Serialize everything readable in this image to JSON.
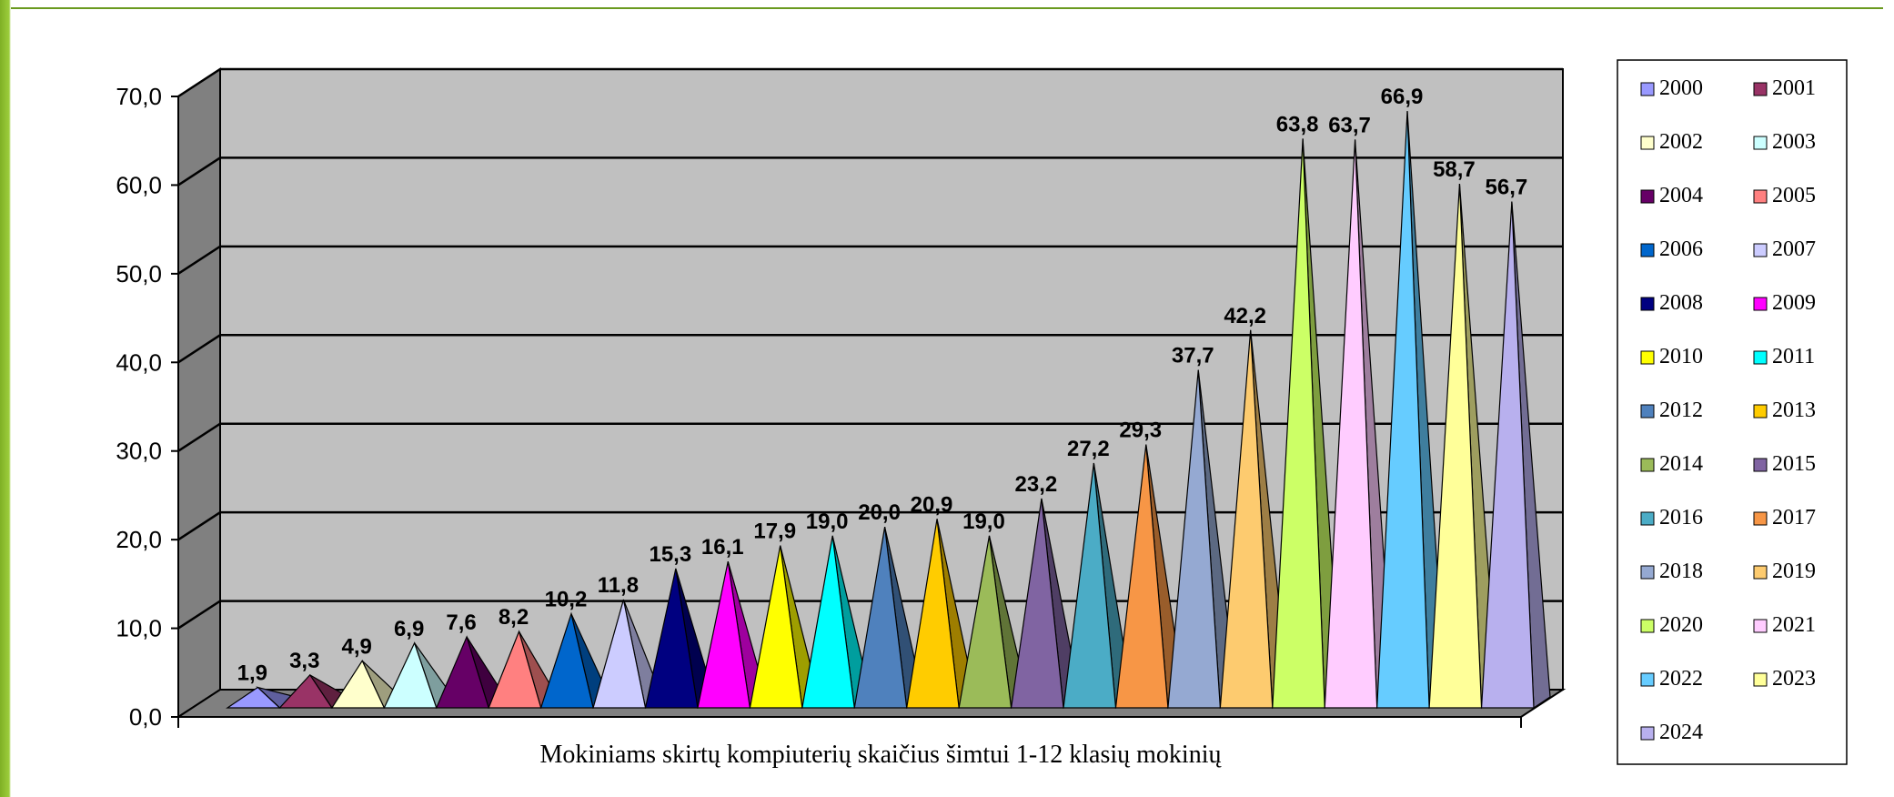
{
  "chart_data": {
    "type": "bar",
    "style": "3d-pyramid",
    "xlabel": "Mokiniams skirtų kompiuterių skaičius šimtui 1-12 klasių mokinių",
    "ylim": [
      0,
      70
    ],
    "y_ticks": [
      "0,0",
      "10,0",
      "20,0",
      "30,0",
      "40,0",
      "50,0",
      "60,0",
      "70,0"
    ],
    "grid": true,
    "legend_position": "right",
    "series": [
      {
        "name": "2000",
        "value": 1.9,
        "label": "1,9",
        "color": "#9999ff"
      },
      {
        "name": "2001",
        "value": 3.3,
        "label": "3,3",
        "color": "#993366"
      },
      {
        "name": "2002",
        "value": 4.9,
        "label": "4,9",
        "color": "#ffffcc"
      },
      {
        "name": "2003",
        "value": 6.9,
        "label": "6,9",
        "color": "#ccffff"
      },
      {
        "name": "2004",
        "value": 7.6,
        "label": "7,6",
        "color": "#660066"
      },
      {
        "name": "2005",
        "value": 8.2,
        "label": "8,2",
        "color": "#ff8080"
      },
      {
        "name": "2006",
        "value": 10.2,
        "label": "10,2",
        "color": "#0066cc"
      },
      {
        "name": "2007",
        "value": 11.8,
        "label": "11,8",
        "color": "#ccccff"
      },
      {
        "name": "2008",
        "value": 15.3,
        "label": "15,3",
        "color": "#000080"
      },
      {
        "name": "2009",
        "value": 16.1,
        "label": "16,1",
        "color": "#ff00ff"
      },
      {
        "name": "2010",
        "value": 17.9,
        "label": "17,9",
        "color": "#ffff00"
      },
      {
        "name": "2011",
        "value": 19.0,
        "label": "19,0",
        "color": "#00ffff"
      },
      {
        "name": "2012",
        "value": 20.0,
        "label": "20,0",
        "color": "#4f81bd"
      },
      {
        "name": "2013",
        "value": 20.9,
        "label": "20,9",
        "color": "#ffcc00"
      },
      {
        "name": "2014",
        "value": 19.0,
        "label": "19,0",
        "color": "#9bbb59"
      },
      {
        "name": "2015",
        "value": 23.2,
        "label": "23,2",
        "color": "#8064a2"
      },
      {
        "name": "2016",
        "value": 27.2,
        "label": "27,2",
        "color": "#4bacc6"
      },
      {
        "name": "2017",
        "value": 29.3,
        "label": "29,3",
        "color": "#f79646"
      },
      {
        "name": "2018",
        "value": 37.7,
        "label": "37,7",
        "color": "#95a9d2"
      },
      {
        "name": "2019",
        "value": 42.2,
        "label": "42,2",
        "color": "#fdcb6f"
      },
      {
        "name": "2020",
        "value": 63.8,
        "label": "63,8",
        "color": "#ccff66"
      },
      {
        "name": "2021",
        "value": 63.7,
        "label": "63,7",
        "color": "#ffccff"
      },
      {
        "name": "2022",
        "value": 66.9,
        "label": "66,9",
        "color": "#66ccff"
      },
      {
        "name": "2023",
        "value": 58.7,
        "label": "58,7",
        "color": "#ffff99"
      },
      {
        "name": "2024",
        "value": 56.7,
        "label": "56,7",
        "color": "#b8b0ee"
      }
    ]
  }
}
